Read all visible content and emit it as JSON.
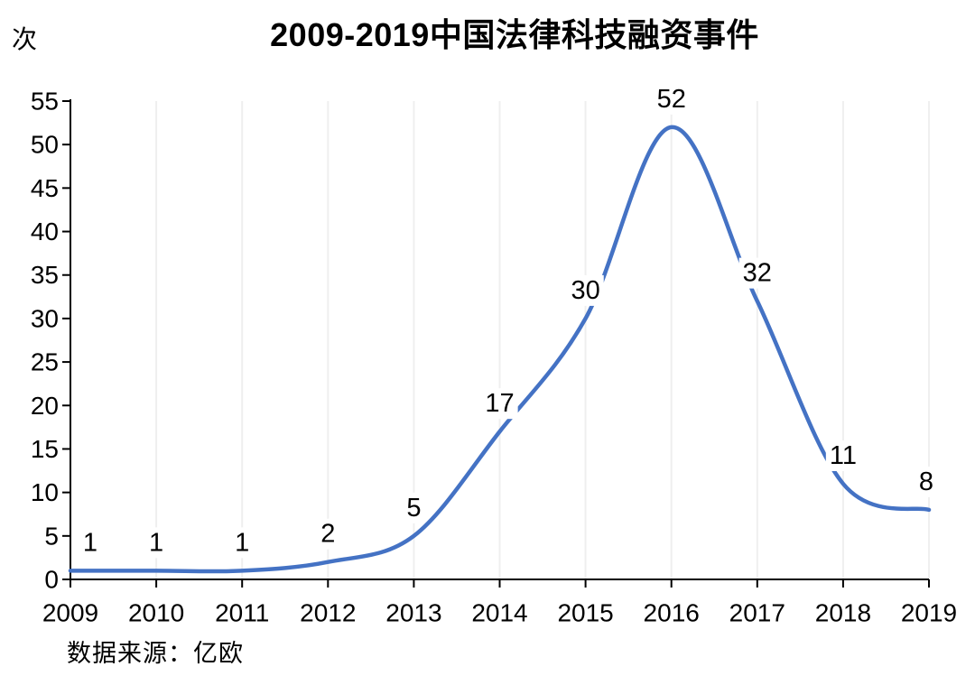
{
  "chart": {
    "title": "2009-2019中国法律科技融资事件",
    "unit_label": "次",
    "source": "数据来源：亿欧"
  },
  "chart_data": {
    "type": "line",
    "title": "2009-2019中国法律科技融资事件",
    "categories": [
      2009,
      2010,
      2011,
      2012,
      2013,
      2014,
      2015,
      2016,
      2017,
      2018,
      2019
    ],
    "values": [
      1,
      1,
      1,
      2,
      5,
      17,
      30,
      52,
      32,
      11,
      8
    ],
    "xlabel": "",
    "ylabel": "次",
    "ylim": [
      0,
      55
    ],
    "ytick_step": 5,
    "yticks": [
      0,
      5,
      10,
      15,
      20,
      25,
      30,
      35,
      40,
      45,
      50,
      55
    ],
    "grid": "vertical",
    "legend": "none",
    "smooth": true,
    "data_labels": [
      1,
      1,
      1,
      2,
      5,
      17,
      30,
      52,
      32,
      11,
      8
    ],
    "line_color": "#4472C4",
    "grid_color": "#efefef",
    "axis_color": "#000000",
    "text_color": "#000000",
    "source": "数据来源：亿欧"
  }
}
